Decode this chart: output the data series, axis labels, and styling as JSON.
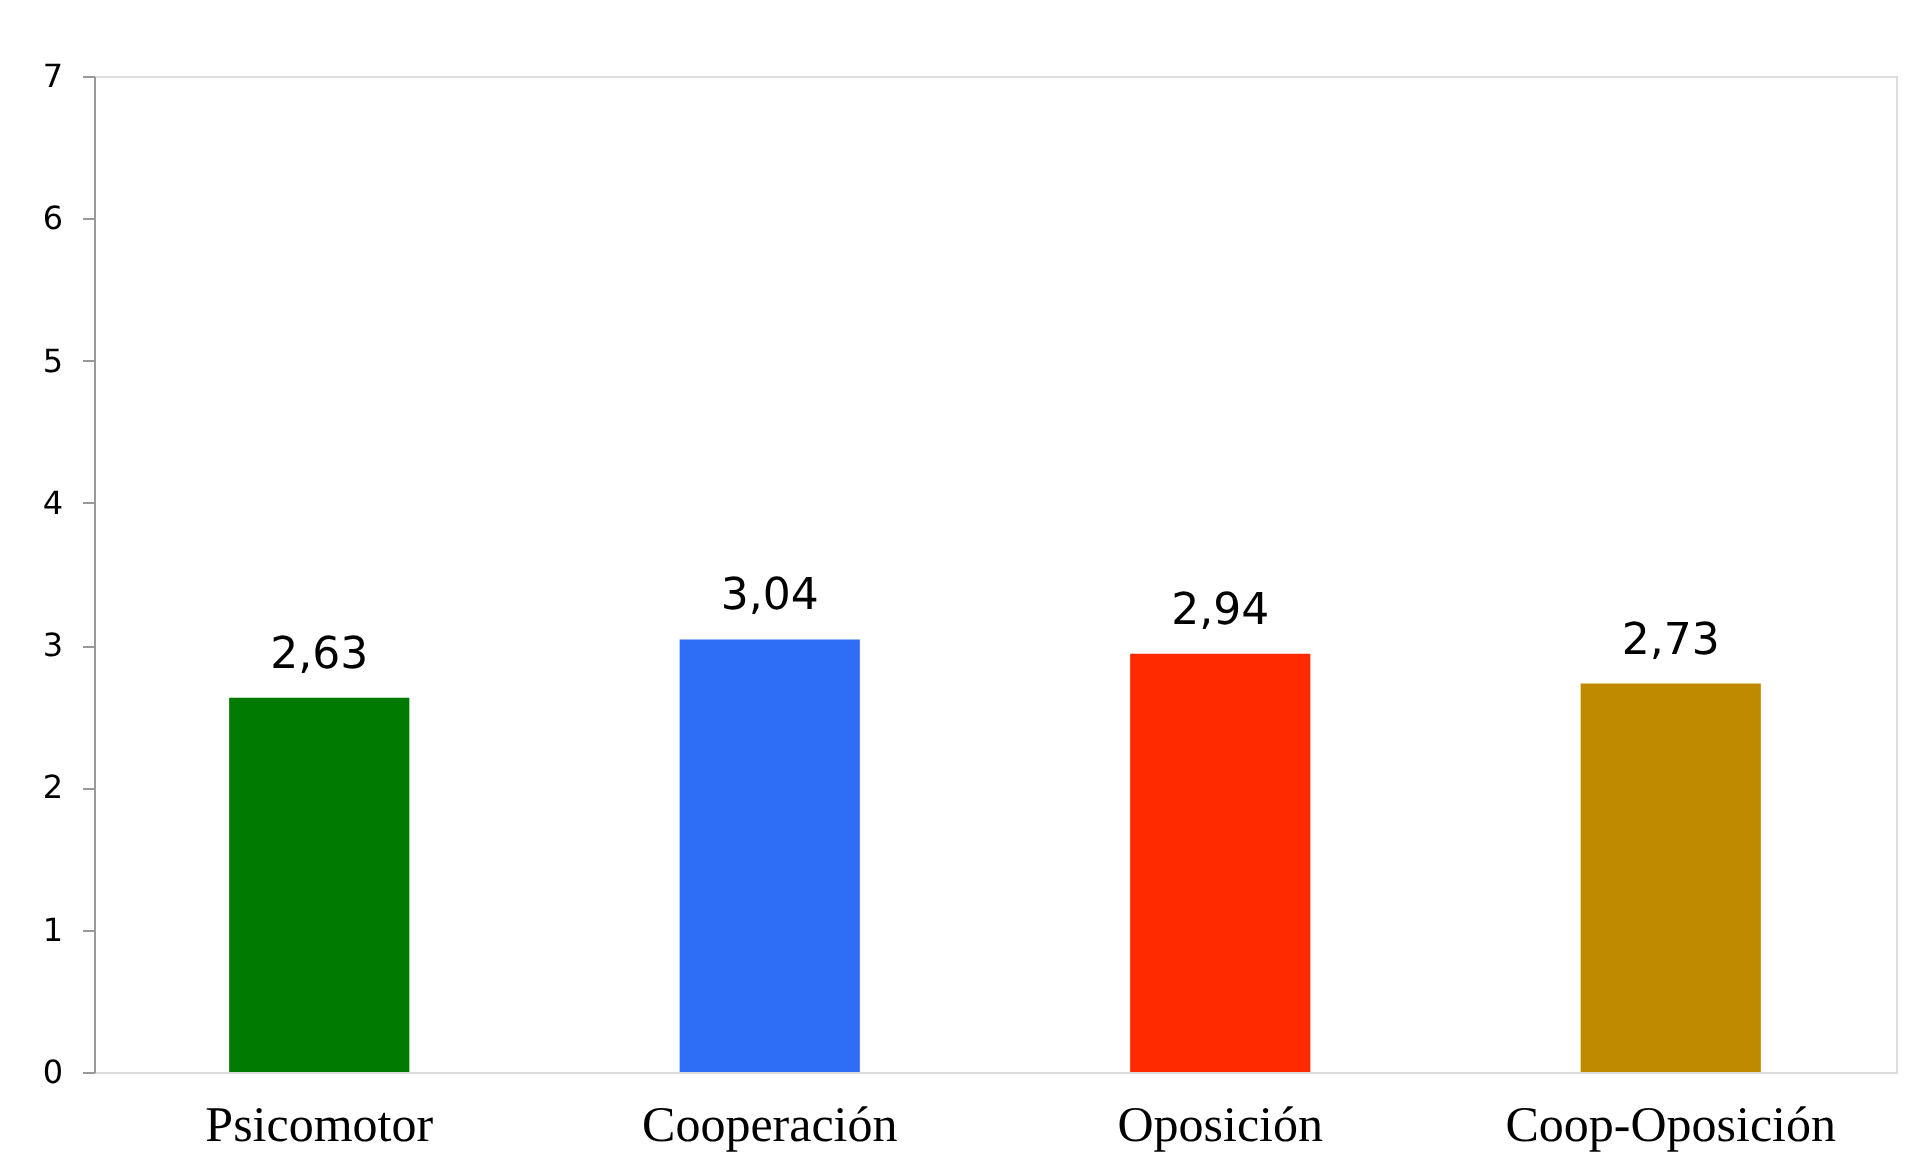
{
  "chart_data": {
    "type": "bar",
    "categories": [
      "Psicomotor",
      "Cooperación",
      "Oposición",
      "Coop-Oposición"
    ],
    "values": [
      2.63,
      3.04,
      2.94,
      2.73
    ],
    "colors": [
      "#007a00",
      "#2e6ef7",
      "#ff2a00",
      "#bf8a00"
    ],
    "value_labels": [
      "2,63",
      "3,04",
      "2,94",
      "2,73"
    ],
    "ylim": [
      0,
      7
    ],
    "yticks": [
      0,
      1,
      2,
      3,
      4,
      5,
      6,
      7
    ],
    "grid": false
  }
}
